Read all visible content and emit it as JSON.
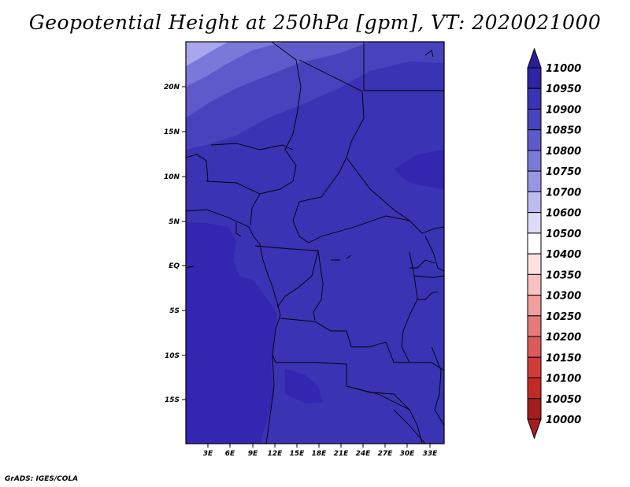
{
  "title": "Geopotential Height at 250hPa [gpm], VT: 2020021000",
  "credit": "GrADS: IGES/COLA",
  "colors": {
    "frame": "#000000",
    "base_fill": "#3a33b3",
    "ocean_fill": "#3326b0",
    "north_band_1": "#4842bd",
    "north_band_2": "#5e5acb",
    "north_band_3": "#7a78d8",
    "north_band_4": "#a8a6ec",
    "border": "#000000"
  },
  "map": {
    "lon_labels": [
      "3E",
      "6E",
      "9E",
      "12E",
      "15E",
      "18E",
      "21E",
      "24E",
      "27E",
      "30E",
      "33E"
    ],
    "lat_labels": [
      "20N",
      "15N",
      "10N",
      "5N",
      "EQ",
      "5S",
      "10S",
      "15S"
    ]
  },
  "colorbar": {
    "labels": [
      "11000",
      "10950",
      "10900",
      "10850",
      "10800",
      "10750",
      "10700",
      "10600",
      "10500",
      "10400",
      "10350",
      "10300",
      "10250",
      "10200",
      "10150",
      "10100",
      "10050",
      "10000"
    ],
    "colors": [
      "#2a1e9a",
      "#2f24a6",
      "#3a33b3",
      "#4842bd",
      "#5e5acb",
      "#7a78d8",
      "#9896e3",
      "#bdbcee",
      "#dcdcf7",
      "#ffffff",
      "#fde0e0",
      "#f8c2c2",
      "#f09e9e",
      "#e67a7a",
      "#dc5a5a",
      "#d03c3c",
      "#c22a2a",
      "#a51e1e"
    ]
  }
}
